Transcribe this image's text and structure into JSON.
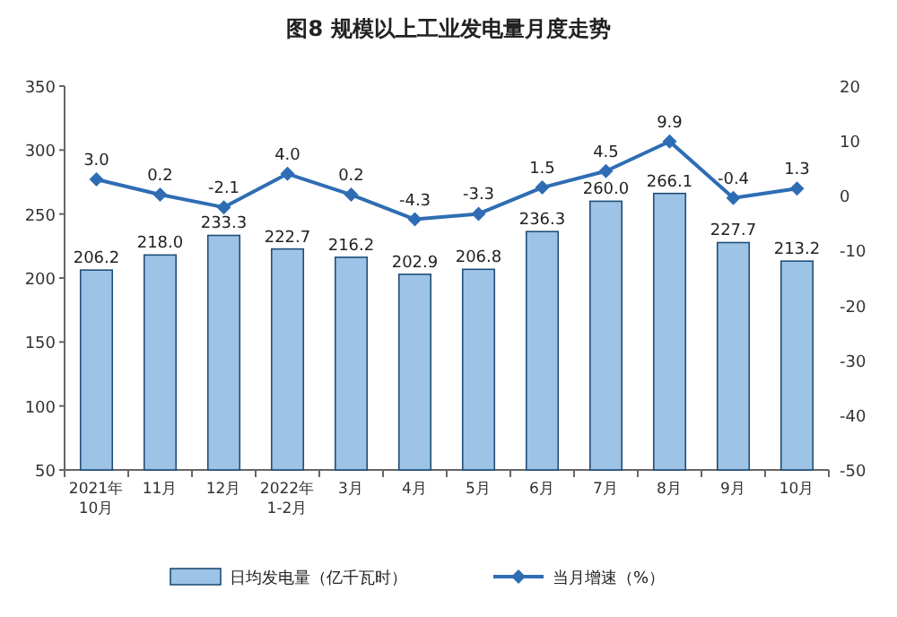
{
  "chart_data": {
    "type": "bar",
    "title": "图8  规模以上工业发电量月度走势",
    "categories": [
      "2021年\n10月",
      "11月",
      "12月",
      "2022年\n1-2月",
      "3月",
      "4月",
      "5月",
      "6月",
      "7月",
      "8月",
      "9月",
      "10月"
    ],
    "series": [
      {
        "name": "日均发电量（亿千瓦时）",
        "color": "#9dc3e6",
        "values": [
          206.2,
          218.0,
          233.3,
          222.7,
          216.2,
          202.9,
          206.8,
          236.3,
          260.0,
          266.1,
          227.7,
          213.2
        ],
        "value_labels": [
          "206.2",
          "218.0",
          "233.3",
          "222.7",
          "216.2",
          "202.9",
          "206.8",
          "236.3",
          "260.0",
          "266.1",
          "227.7",
          "213.2"
        ]
      },
      {
        "name": "当月增速（%）",
        "type": "line",
        "axis": "y2",
        "color": "#2e6db4",
        "marker": "diamond",
        "values": [
          3.0,
          0.2,
          -2.1,
          4.0,
          0.2,
          -4.3,
          -3.3,
          1.5,
          4.5,
          9.9,
          -0.4,
          1.3
        ],
        "value_labels": [
          "3.0",
          "0.2",
          "-2.1",
          "4.0",
          "0.2",
          "-4.3",
          "-3.3",
          "1.5",
          "4.5",
          "9.9",
          "-0.4",
          "1.3"
        ]
      }
    ],
    "ylim": [
      50,
      350
    ],
    "yticks": [
      50,
      100,
      150,
      200,
      250,
      300,
      350
    ],
    "y2lim": [
      -50,
      20
    ],
    "y2ticks": [
      -50,
      -40,
      -30,
      -20,
      -10,
      0,
      10,
      20
    ],
    "grid": false,
    "legend": "bottom"
  }
}
